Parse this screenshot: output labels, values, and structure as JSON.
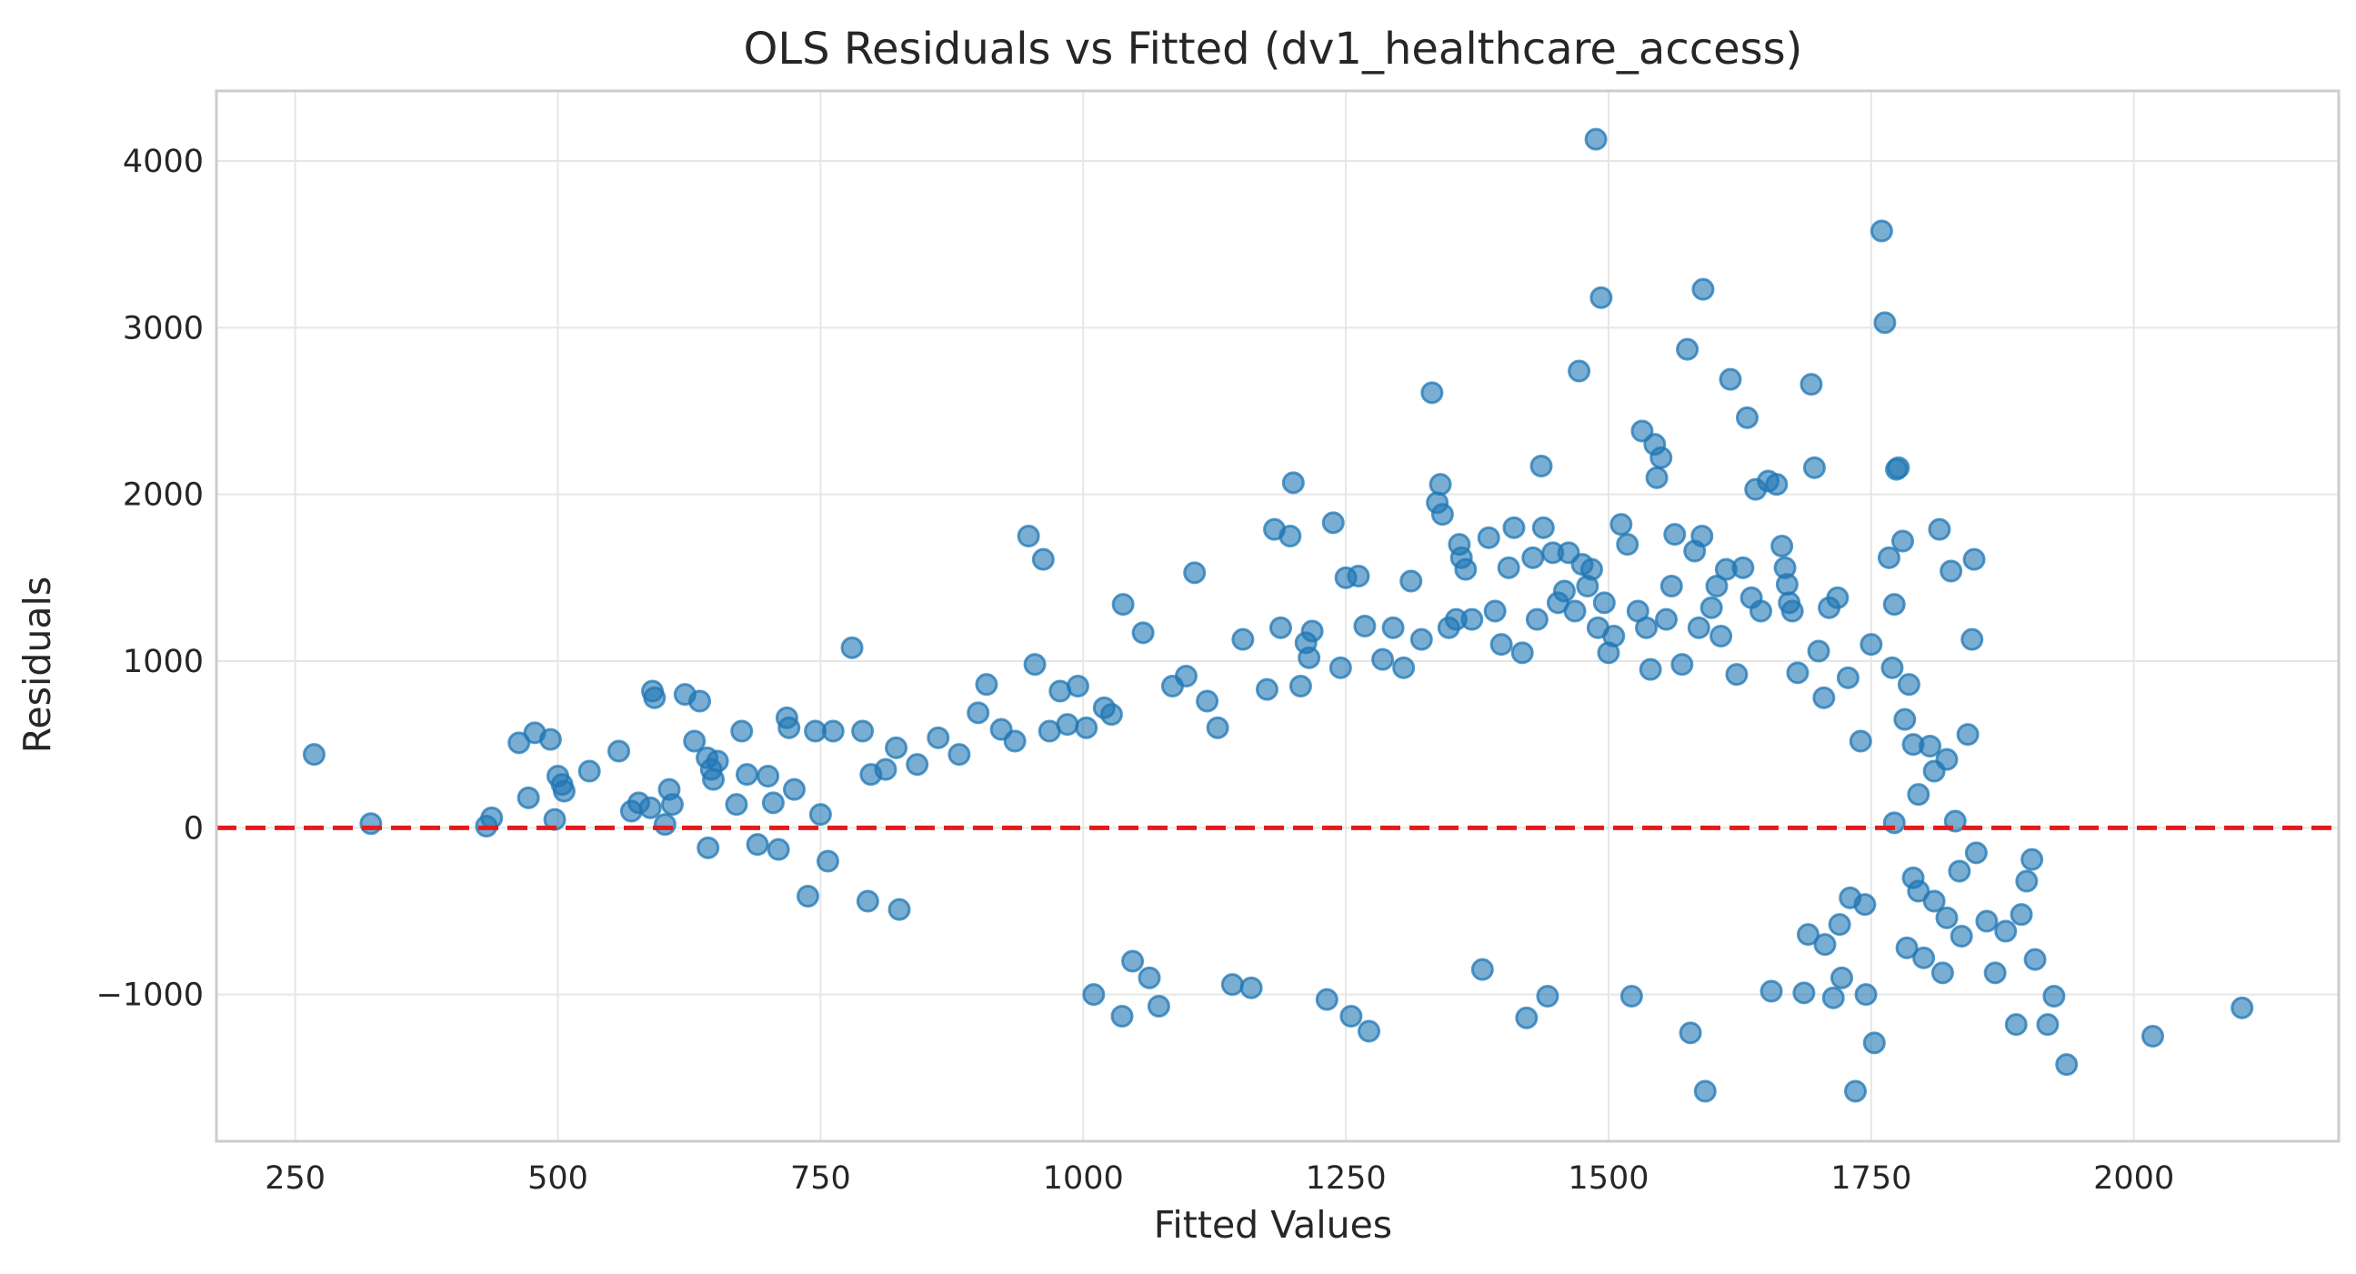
{
  "chart_data": {
    "type": "scatter",
    "title": "OLS Residuals vs Fitted (dv1_healthcare_access)",
    "xlabel": "Fitted Values",
    "ylabel": "Residuals",
    "xlim": [
      175,
      2195
    ],
    "ylim": [
      -1880,
      4420
    ],
    "xticks": [
      250,
      500,
      750,
      1000,
      1250,
      1500,
      1750,
      2000
    ],
    "yticks": [
      -1000,
      0,
      1000,
      2000,
      3000,
      4000
    ],
    "ytick_labels": [
      "−1000",
      "0",
      "1000",
      "2000",
      "3000",
      "4000"
    ],
    "grid": true,
    "reference_line": {
      "y": 0,
      "style": "dashed",
      "color": "#e41a1c"
    },
    "marker_color": "#1f77b4",
    "series": [
      {
        "points": [
          [
            268,
            440
          ],
          [
            322,
            25
          ],
          [
            432,
            10
          ],
          [
            437,
            60
          ],
          [
            463,
            510
          ],
          [
            472,
            180
          ],
          [
            478,
            570
          ],
          [
            493,
            530
          ],
          [
            497,
            50
          ],
          [
            500,
            310
          ],
          [
            504,
            260
          ],
          [
            506,
            220
          ],
          [
            530,
            340
          ],
          [
            558,
            460
          ],
          [
            570,
            100
          ],
          [
            577,
            150
          ],
          [
            588,
            120
          ],
          [
            590,
            820
          ],
          [
            592,
            780
          ],
          [
            602,
            20
          ],
          [
            606,
            230
          ],
          [
            609,
            140
          ],
          [
            621,
            800
          ],
          [
            630,
            520
          ],
          [
            635,
            760
          ],
          [
            642,
            420
          ],
          [
            643,
            -120
          ],
          [
            646,
            350
          ],
          [
            648,
            290
          ],
          [
            652,
            400
          ],
          [
            670,
            140
          ],
          [
            675,
            580
          ],
          [
            680,
            320
          ],
          [
            690,
            -100
          ],
          [
            700,
            310
          ],
          [
            705,
            150
          ],
          [
            710,
            -130
          ],
          [
            718,
            660
          ],
          [
            720,
            600
          ],
          [
            725,
            230
          ],
          [
            738,
            -410
          ],
          [
            745,
            580
          ],
          [
            750,
            80
          ],
          [
            757,
            -200
          ],
          [
            762,
            580
          ],
          [
            780,
            1080
          ],
          [
            790,
            580
          ],
          [
            795,
            -440
          ],
          [
            798,
            320
          ],
          [
            812,
            350
          ],
          [
            822,
            480
          ],
          [
            825,
            -490
          ],
          [
            842,
            380
          ],
          [
            862,
            540
          ],
          [
            882,
            440
          ],
          [
            900,
            690
          ],
          [
            908,
            860
          ],
          [
            922,
            590
          ],
          [
            935,
            520
          ],
          [
            948,
            1750
          ],
          [
            954,
            980
          ],
          [
            962,
            1610
          ],
          [
            968,
            580
          ],
          [
            978,
            820
          ],
          [
            985,
            620
          ],
          [
            995,
            850
          ],
          [
            1003,
            600
          ],
          [
            1010,
            -1000
          ],
          [
            1020,
            720
          ],
          [
            1027,
            680
          ],
          [
            1037,
            -1130
          ],
          [
            1038,
            1340
          ],
          [
            1047,
            -800
          ],
          [
            1057,
            1170
          ],
          [
            1063,
            -900
          ],
          [
            1072,
            -1070
          ],
          [
            1085,
            850
          ],
          [
            1098,
            910
          ],
          [
            1106,
            1530
          ],
          [
            1118,
            760
          ],
          [
            1128,
            600
          ],
          [
            1142,
            -940
          ],
          [
            1152,
            1130
          ],
          [
            1160,
            -960
          ],
          [
            1175,
            830
          ],
          [
            1182,
            1790
          ],
          [
            1188,
            1200
          ],
          [
            1197,
            1750
          ],
          [
            1200,
            2070
          ],
          [
            1207,
            850
          ],
          [
            1212,
            1110
          ],
          [
            1215,
            1020
          ],
          [
            1218,
            1180
          ],
          [
            1232,
            -1030
          ],
          [
            1238,
            1830
          ],
          [
            1245,
            960
          ],
          [
            1250,
            1500
          ],
          [
            1255,
            -1130
          ],
          [
            1262,
            1510
          ],
          [
            1268,
            1210
          ],
          [
            1272,
            -1220
          ],
          [
            1285,
            1010
          ],
          [
            1295,
            1200
          ],
          [
            1305,
            960
          ],
          [
            1312,
            1480
          ],
          [
            1322,
            1130
          ],
          [
            1332,
            2610
          ],
          [
            1337,
            1950
          ],
          [
            1340,
            2060
          ],
          [
            1342,
            1880
          ],
          [
            1348,
            1200
          ],
          [
            1355,
            1250
          ],
          [
            1358,
            1700
          ],
          [
            1360,
            1620
          ],
          [
            1364,
            1550
          ],
          [
            1370,
            1250
          ],
          [
            1380,
            -850
          ],
          [
            1386,
            1740
          ],
          [
            1392,
            1300
          ],
          [
            1398,
            1100
          ],
          [
            1405,
            1560
          ],
          [
            1410,
            1800
          ],
          [
            1418,
            1050
          ],
          [
            1422,
            -1140
          ],
          [
            1428,
            1620
          ],
          [
            1432,
            1250
          ],
          [
            1436,
            2170
          ],
          [
            1438,
            1800
          ],
          [
            1442,
            -1010
          ],
          [
            1447,
            1650
          ],
          [
            1452,
            1350
          ],
          [
            1458,
            1420
          ],
          [
            1462,
            1650
          ],
          [
            1468,
            1300
          ],
          [
            1472,
            2740
          ],
          [
            1475,
            1580
          ],
          [
            1480,
            1450
          ],
          [
            1484,
            1550
          ],
          [
            1488,
            4130
          ],
          [
            1490,
            1200
          ],
          [
            1493,
            3180
          ],
          [
            1496,
            1350
          ],
          [
            1500,
            1050
          ],
          [
            1505,
            1150
          ],
          [
            1512,
            1820
          ],
          [
            1518,
            1700
          ],
          [
            1522,
            -1010
          ],
          [
            1528,
            1300
          ],
          [
            1532,
            2380
          ],
          [
            1536,
            1200
          ],
          [
            1540,
            950
          ],
          [
            1544,
            2300
          ],
          [
            1546,
            2100
          ],
          [
            1550,
            2220
          ],
          [
            1555,
            1250
          ],
          [
            1560,
            1450
          ],
          [
            1563,
            1760
          ],
          [
            1570,
            980
          ],
          [
            1575,
            2870
          ],
          [
            1578,
            -1230
          ],
          [
            1582,
            1660
          ],
          [
            1586,
            1200
          ],
          [
            1589,
            1750
          ],
          [
            1590,
            3230
          ],
          [
            1592,
            -1580
          ],
          [
            1598,
            1320
          ],
          [
            1603,
            1450
          ],
          [
            1607,
            1150
          ],
          [
            1612,
            1550
          ],
          [
            1616,
            2690
          ],
          [
            1622,
            920
          ],
          [
            1628,
            1560
          ],
          [
            1632,
            2460
          ],
          [
            1636,
            1380
          ],
          [
            1640,
            2030
          ],
          [
            1645,
            1300
          ],
          [
            1652,
            2080
          ],
          [
            1655,
            -980
          ],
          [
            1660,
            2060
          ],
          [
            1665,
            1690
          ],
          [
            1668,
            1560
          ],
          [
            1670,
            1460
          ],
          [
            1672,
            1350
          ],
          [
            1675,
            1300
          ],
          [
            1680,
            930
          ],
          [
            1686,
            -990
          ],
          [
            1693,
            2660
          ],
          [
            1696,
            2160
          ],
          [
            1700,
            1060
          ],
          [
            1705,
            780
          ],
          [
            1710,
            1320
          ],
          [
            1714,
            -1020
          ],
          [
            1718,
            1380
          ],
          [
            1722,
            -900
          ],
          [
            1728,
            900
          ],
          [
            1735,
            -1580
          ],
          [
            1740,
            520
          ],
          [
            1745,
            -1000
          ],
          [
            1750,
            1100
          ],
          [
            1753,
            -1290
          ],
          [
            1760,
            3580
          ],
          [
            1763,
            3030
          ],
          [
            1767,
            1620
          ],
          [
            1770,
            960
          ],
          [
            1772,
            1340
          ],
          [
            1774,
            2150
          ],
          [
            1776,
            2160
          ],
          [
            1780,
            1720
          ],
          [
            1782,
            650
          ],
          [
            1786,
            860
          ],
          [
            1790,
            500
          ],
          [
            1795,
            200
          ],
          [
            1800,
            -780
          ],
          [
            1806,
            490
          ],
          [
            1810,
            340
          ],
          [
            1815,
            1790
          ],
          [
            1818,
            -870
          ],
          [
            1822,
            410
          ],
          [
            1826,
            1540
          ],
          [
            1830,
            40
          ],
          [
            1836,
            -650
          ],
          [
            1842,
            560
          ],
          [
            1846,
            1130
          ],
          [
            1848,
            1610
          ],
          [
            1850,
            -150
          ],
          [
            1860,
            -560
          ],
          [
            1868,
            -870
          ],
          [
            1878,
            -620
          ],
          [
            1888,
            -1180
          ],
          [
            1893,
            -520
          ],
          [
            1898,
            -320
          ],
          [
            1903,
            -190
          ],
          [
            1906,
            -790
          ],
          [
            1918,
            -1180
          ],
          [
            1924,
            -1010
          ],
          [
            1936,
            -1420
          ],
          [
            2018,
            -1250
          ],
          [
            2103,
            -1080
          ],
          [
            1772,
            30
          ],
          [
            1790,
            -300
          ],
          [
            1784,
            -720
          ],
          [
            1795,
            -380
          ],
          [
            1810,
            -440
          ],
          [
            1822,
            -540
          ],
          [
            1834,
            -260
          ],
          [
            1744,
            -460
          ],
          [
            1730,
            -420
          ],
          [
            1720,
            -580
          ],
          [
            1706,
            -700
          ],
          [
            1690,
            -640
          ]
        ]
      }
    ]
  }
}
